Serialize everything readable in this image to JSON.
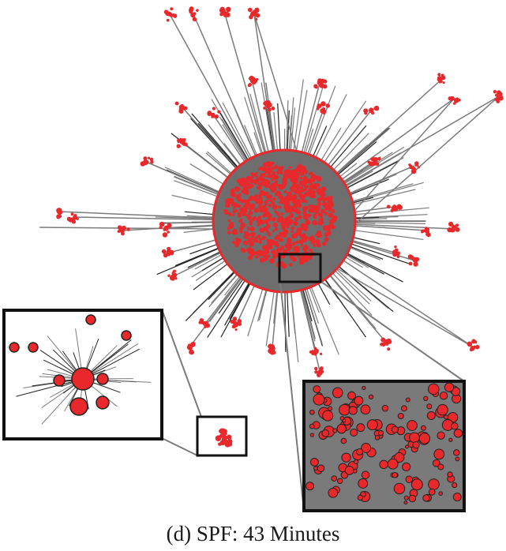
{
  "caption": "(d)  SPF: 43 Minutes",
  "colors": {
    "node": "#e8282a",
    "edge": "#7b7b7b",
    "core_fill": "#6e6e6e",
    "inset_border": "#111111",
    "dark_edge": "#222222"
  }
}
